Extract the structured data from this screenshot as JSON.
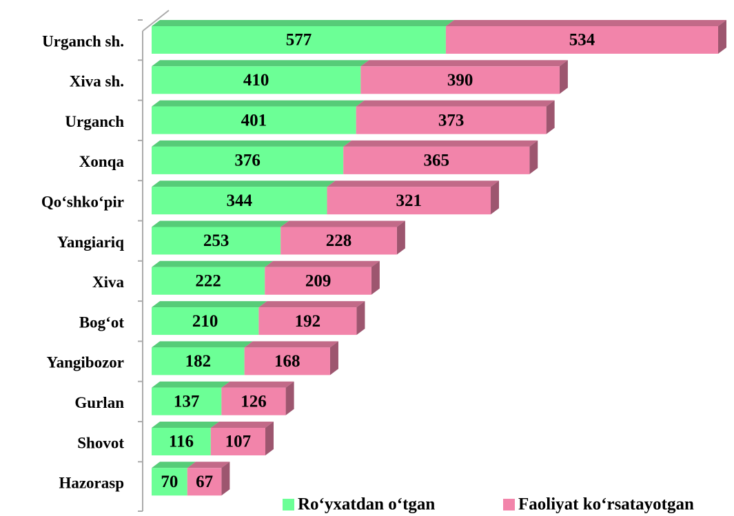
{
  "chart_data": {
    "type": "bar",
    "orientation": "horizontal",
    "stacked": true,
    "categories": [
      "Urganch sh.",
      "Xiva sh.",
      "Urganch",
      "Xonqa",
      "Qo‘shko‘pir",
      "Yangiariq",
      "Xiva",
      "Bog‘ot",
      "Yangibozor",
      "Gurlan",
      "Shovot",
      "Hazorasp"
    ],
    "series": [
      {
        "name": "Ro‘yxatdan o‘tgan",
        "color": "#6cff96",
        "values": [
          577,
          410,
          401,
          376,
          344,
          253,
          222,
          210,
          182,
          137,
          116,
          70
        ]
      },
      {
        "name": "Faoliyat ko‘rsatayotgan",
        "color": "#f284aa",
        "values": [
          534,
          390,
          373,
          365,
          321,
          228,
          209,
          192,
          168,
          126,
          107,
          67
        ]
      }
    ],
    "legend": "bottom-right"
  }
}
